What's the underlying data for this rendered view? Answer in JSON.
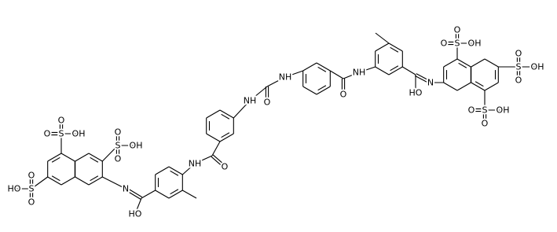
{
  "atoms": [
    "S",
    "O",
    "O",
    "OH",
    "S",
    "O",
    "O",
    "OH",
    "S",
    "O",
    "O",
    "OH",
    "N",
    "HO",
    "NH",
    "O",
    "NH",
    "O",
    "NH",
    "O",
    "NH",
    "N",
    "HO",
    "S",
    "O",
    "O",
    "OH",
    "S",
    "O",
    "O",
    "OH",
    "S",
    "O",
    "O",
    "HO"
  ]
}
